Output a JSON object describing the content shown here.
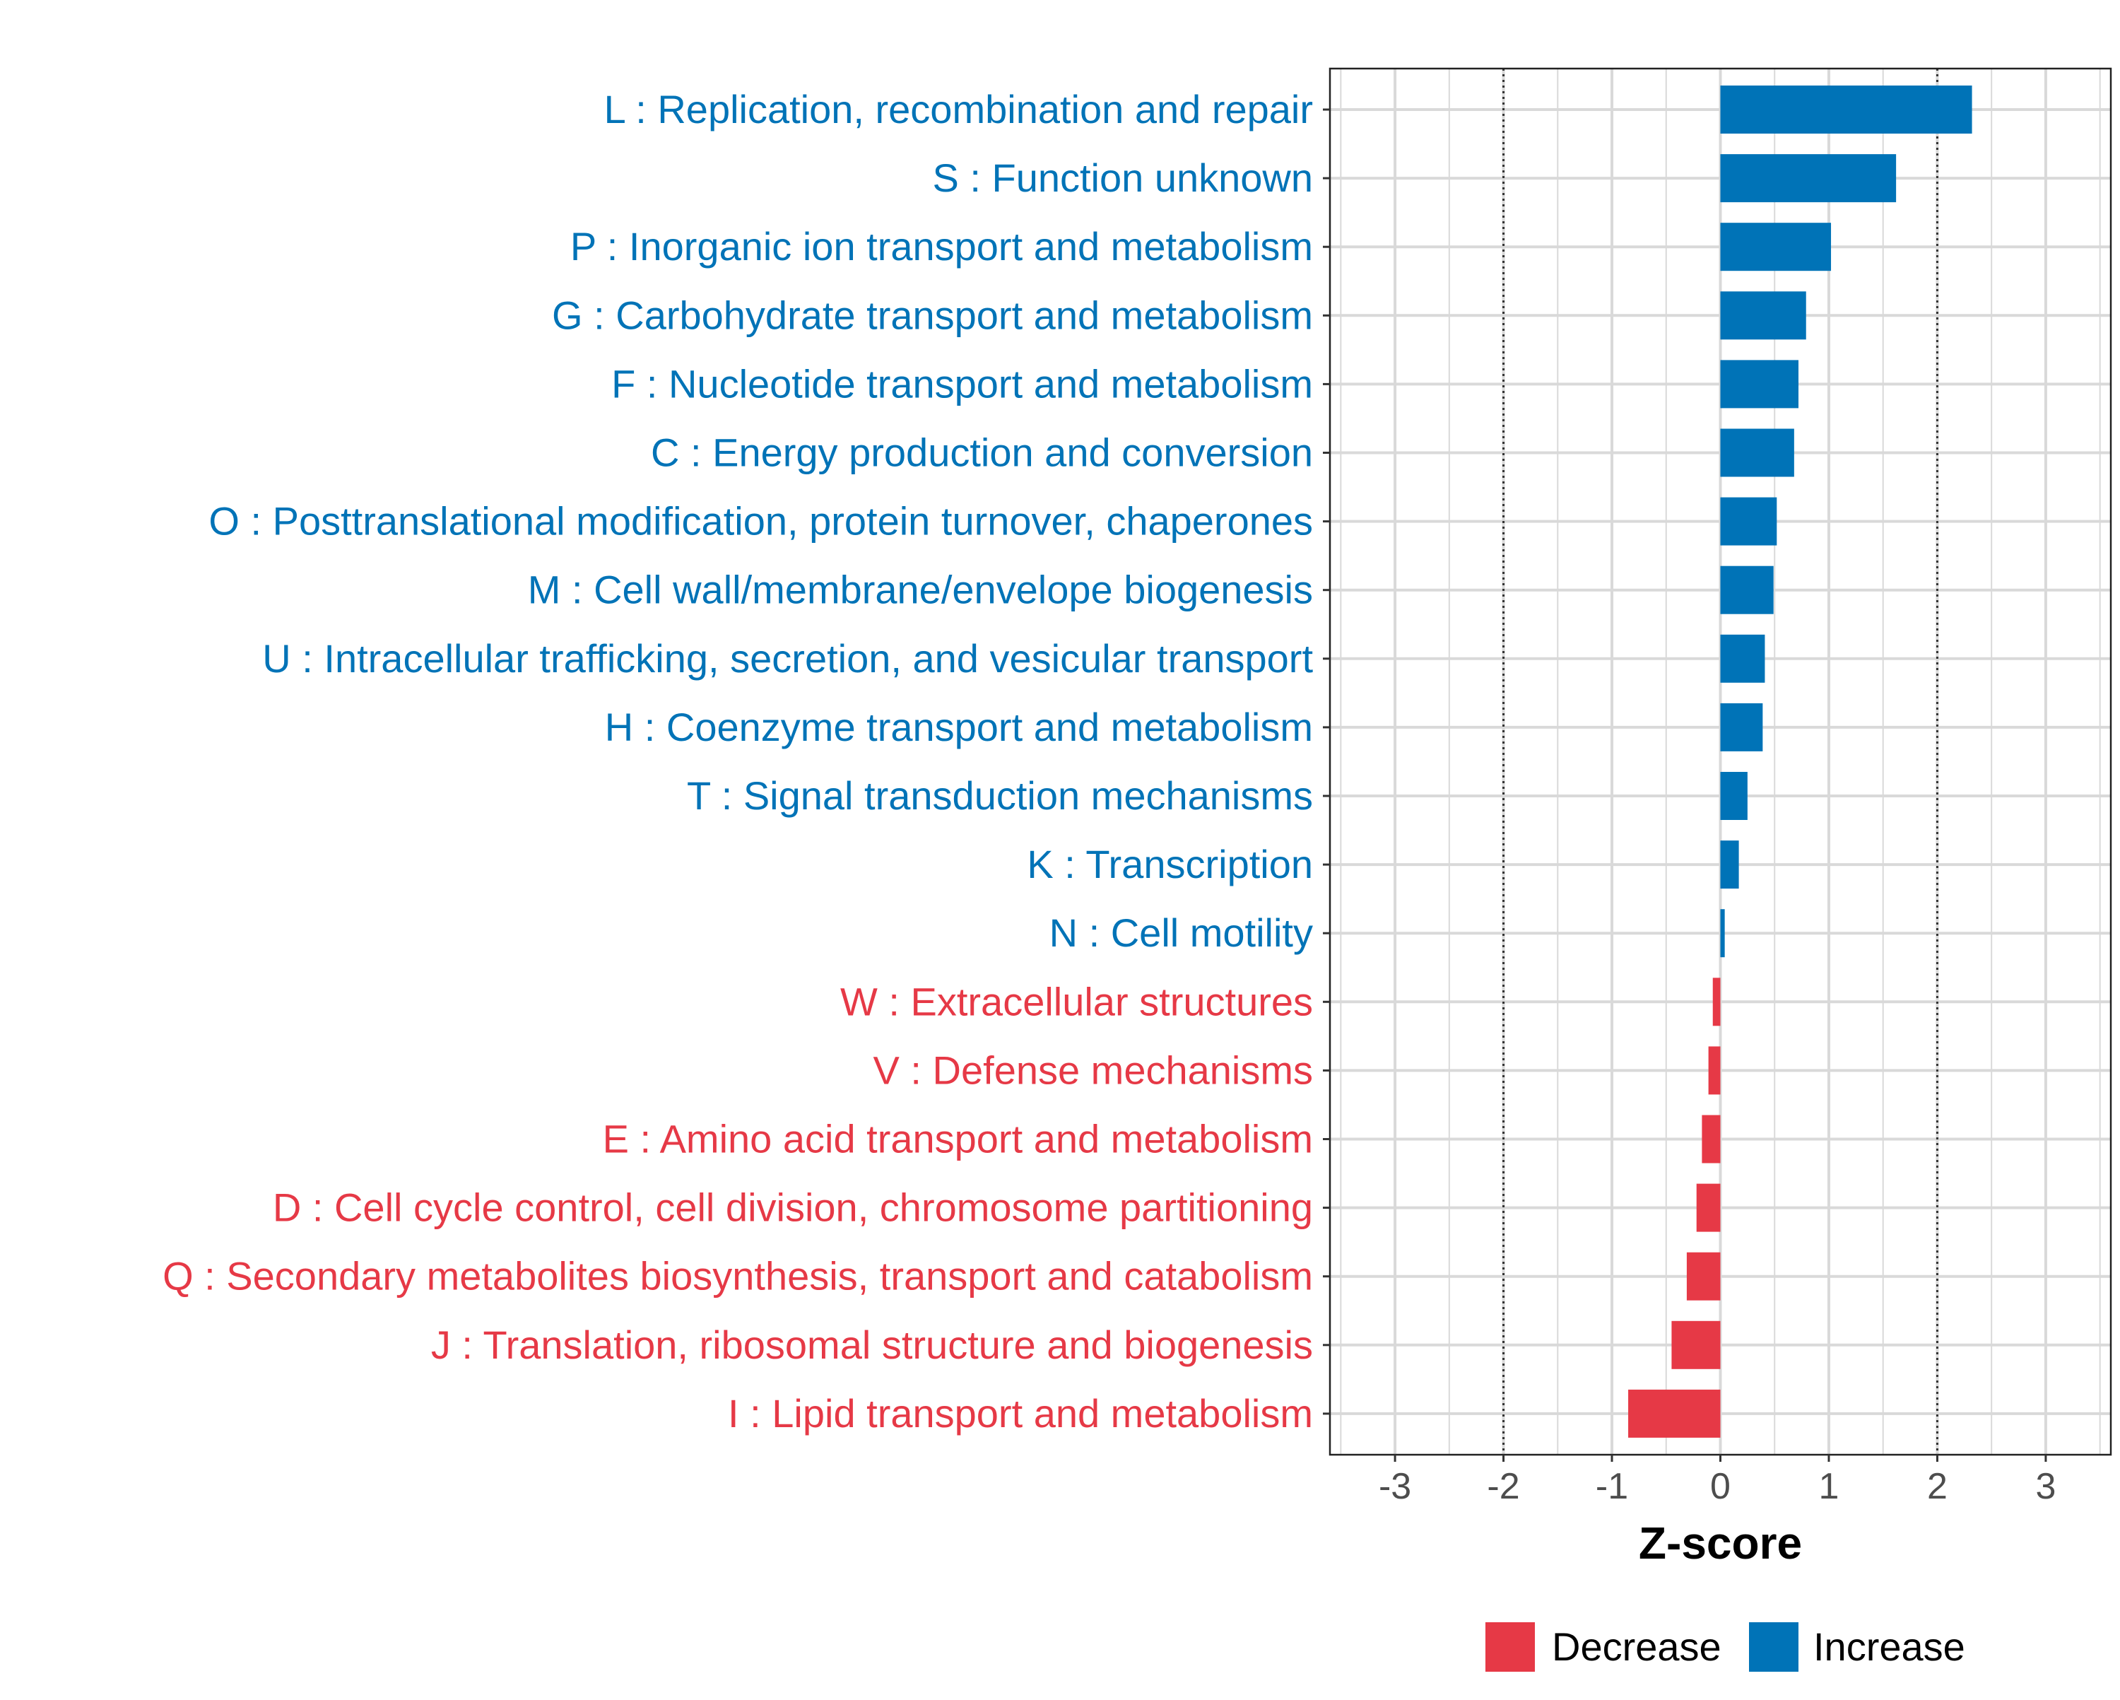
{
  "chart_data": {
    "type": "bar",
    "orientation": "horizontal",
    "xlabel": "Z-score",
    "xlim": [
      -3.6,
      3.6
    ],
    "xticks": [
      -3,
      -2,
      -1,
      0,
      1,
      2,
      3
    ],
    "reference_lines": [
      -2,
      2
    ],
    "grid": true,
    "legend_position": "bottom",
    "colors": {
      "Increase": "#0073b7",
      "Decrease": "#e63946"
    },
    "legend": [
      {
        "name": "Decrease",
        "color": "#e63946"
      },
      {
        "name": "Increase",
        "color": "#0073b7"
      }
    ],
    "categories": [
      {
        "label": "L : Replication, recombination and repair",
        "value": 2.32,
        "group": "Increase"
      },
      {
        "label": "S : Function unknown",
        "value": 1.62,
        "group": "Increase"
      },
      {
        "label": "P : Inorganic ion transport and metabolism",
        "value": 1.02,
        "group": "Increase"
      },
      {
        "label": "G : Carbohydrate transport and metabolism",
        "value": 0.79,
        "group": "Increase"
      },
      {
        "label": "F : Nucleotide transport and metabolism",
        "value": 0.72,
        "group": "Increase"
      },
      {
        "label": "C : Energy production and conversion",
        "value": 0.68,
        "group": "Increase"
      },
      {
        "label": "O : Posttranslational modification, protein turnover, chaperones",
        "value": 0.52,
        "group": "Increase"
      },
      {
        "label": "M : Cell wall/membrane/envelope biogenesis",
        "value": 0.49,
        "group": "Increase"
      },
      {
        "label": "U : Intracellular trafficking, secretion, and vesicular transport",
        "value": 0.41,
        "group": "Increase"
      },
      {
        "label": "H : Coenzyme transport and metabolism",
        "value": 0.39,
        "group": "Increase"
      },
      {
        "label": "T : Signal transduction mechanisms",
        "value": 0.25,
        "group": "Increase"
      },
      {
        "label": "K : Transcription",
        "value": 0.17,
        "group": "Increase"
      },
      {
        "label": "N : Cell motility",
        "value": 0.04,
        "group": "Increase"
      },
      {
        "label": "W : Extracellular structures",
        "value": -0.07,
        "group": "Decrease"
      },
      {
        "label": "V : Defense mechanisms",
        "value": -0.11,
        "group": "Decrease"
      },
      {
        "label": "E : Amino acid transport and metabolism",
        "value": -0.17,
        "group": "Decrease"
      },
      {
        "label": "D : Cell cycle control, cell division, chromosome partitioning",
        "value": -0.22,
        "group": "Decrease"
      },
      {
        "label": "Q : Secondary metabolites biosynthesis, transport and catabolism",
        "value": -0.31,
        "group": "Decrease"
      },
      {
        "label": "J : Translation, ribosomal structure and biogenesis",
        "value": -0.45,
        "group": "Decrease"
      },
      {
        "label": "I : Lipid transport and metabolism",
        "value": -0.85,
        "group": "Decrease"
      }
    ]
  }
}
